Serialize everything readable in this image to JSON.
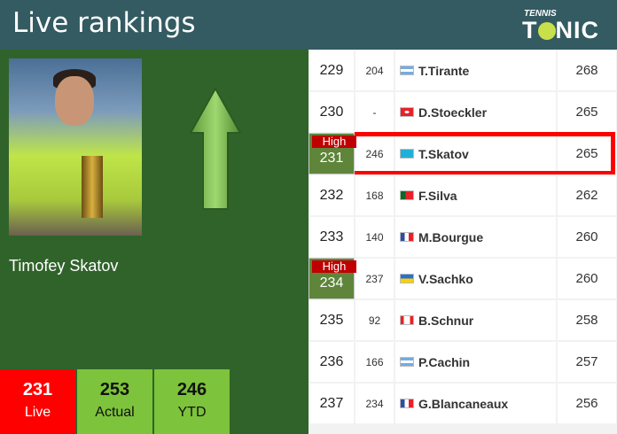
{
  "header": {
    "title": "Live rankings",
    "logo": "TENNIS TONIC"
  },
  "player": {
    "name": "Timofey Skatov"
  },
  "stats": [
    {
      "value": "231",
      "label": "Live"
    },
    {
      "value": "253",
      "label": "Actual"
    },
    {
      "value": "246",
      "label": "YTD"
    }
  ],
  "rows": [
    {
      "rank": "229",
      "prev": "204",
      "name": "T.Tirante",
      "points": "268",
      "flag": "argentina",
      "high": false
    },
    {
      "rank": "230",
      "prev": "-",
      "name": "D.Stoeckler",
      "points": "265",
      "flag": "switzerland",
      "high": false
    },
    {
      "rank": "231",
      "prev": "246",
      "name": "T.Skatov",
      "points": "265",
      "flag": "kazakhstan",
      "high": true,
      "highlighted": true
    },
    {
      "rank": "232",
      "prev": "168",
      "name": "F.Silva",
      "points": "262",
      "flag": "portugal",
      "high": false
    },
    {
      "rank": "233",
      "prev": "140",
      "name": "M.Bourgue",
      "points": "260",
      "flag": "france",
      "high": false
    },
    {
      "rank": "234",
      "prev": "237",
      "name": "V.Sachko",
      "points": "260",
      "flag": "ukraine",
      "high": true
    },
    {
      "rank": "235",
      "prev": "92",
      "name": "B.Schnur",
      "points": "258",
      "flag": "canada",
      "high": false
    },
    {
      "rank": "236",
      "prev": "166",
      "name": "P.Cachin",
      "points": "257",
      "flag": "argentina",
      "high": false
    },
    {
      "rank": "237",
      "prev": "234",
      "name": "G.Blancaneaux",
      "points": "256",
      "flag": "france",
      "high": false
    }
  ],
  "high_label": "High",
  "colors": {
    "header": "#335b61",
    "panel": "#30632a",
    "live": "#ff0000",
    "stat": "#7dc33b",
    "high_badge": "#c00000",
    "high_rank": "#5e853a"
  }
}
